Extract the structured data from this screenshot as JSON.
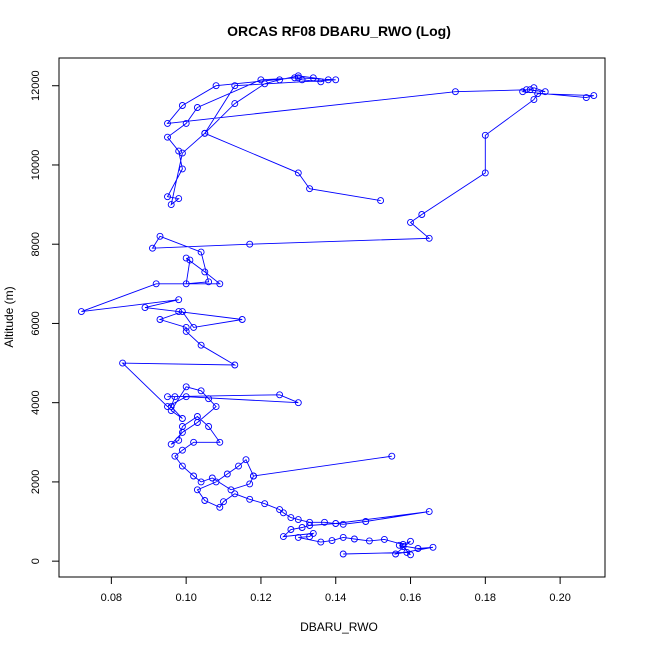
{
  "chart_data": {
    "type": "line",
    "title": "ORCAS RF08 DBARU_RWO (Log)",
    "xlabel": "DBARU_RWO",
    "ylabel": "Altitude (m)",
    "xlim": [
      0.066,
      0.212
    ],
    "ylim": [
      -400,
      12700
    ],
    "x_ticks": [
      0.08,
      0.1,
      0.12,
      0.14,
      0.16,
      0.18,
      0.2
    ],
    "x_tick_labels": [
      "0.08",
      "0.10",
      "0.12",
      "0.14",
      "0.16",
      "0.18",
      "0.20"
    ],
    "y_ticks": [
      0,
      2000,
      4000,
      6000,
      8000,
      10000,
      12000
    ],
    "y_tick_labels": [
      "0",
      "2000",
      "4000",
      "6000",
      "8000",
      "10000",
      "12000"
    ],
    "grid": false,
    "legend": "none",
    "marker": "open-circle",
    "color": "#0000ff",
    "series": [
      {
        "x": [
          0.142,
          0.159,
          0.16,
          0.158,
          0.157,
          0.162,
          0.166,
          0.156,
          0.16,
          0.158,
          0.153,
          0.149,
          0.145,
          0.142,
          0.139,
          0.136,
          0.13,
          0.133,
          0.134,
          0.126,
          0.128,
          0.131,
          0.133,
          0.14,
          0.165,
          0.148,
          0.142,
          0.137,
          0.133,
          0.13,
          0.128,
          0.126,
          0.125,
          0.121,
          0.117,
          0.113,
          0.11,
          0.109,
          0.105,
          0.103,
          0.108,
          0.111,
          0.114,
          0.116,
          0.118,
          0.155,
          0.118,
          0.117,
          0.112,
          0.107,
          0.104,
          0.102,
          0.099,
          0.097,
          0.099,
          0.102,
          0.109,
          0.106,
          0.103,
          0.099,
          0.098,
          0.096,
          0.099,
          0.103,
          0.108,
          0.106,
          0.104,
          0.1,
          0.096,
          0.099,
          0.096,
          0.097,
          0.095,
          0.125,
          0.13,
          0.1,
          0.095,
          0.083,
          0.113,
          0.104,
          0.1,
          0.1,
          0.093,
          0.099,
          0.102,
          0.115,
          0.098,
          0.089,
          0.098,
          0.072,
          0.092,
          0.109,
          0.105,
          0.1,
          0.101,
          0.1,
          0.106,
          0.104,
          0.093,
          0.091,
          0.117,
          0.165,
          0.16,
          0.163,
          0.18,
          0.18,
          0.193,
          0.194,
          0.209,
          0.207,
          0.19,
          0.191,
          0.196,
          0.193,
          0.192,
          0.172,
          0.095,
          0.099,
          0.108,
          0.129,
          0.131,
          0.136,
          0.138,
          0.134,
          0.13,
          0.125,
          0.121,
          0.113,
          0.105,
          0.113,
          0.14,
          0.13,
          0.12,
          0.103,
          0.1,
          0.095,
          0.098,
          0.099,
          0.095,
          0.098,
          0.096,
          0.099,
          0.105,
          0.13,
          0.133,
          0.152
        ],
        "y": [
          180,
          220,
          160,
          370,
          400,
          320,
          350,
          180,
          500,
          420,
          550,
          510,
          560,
          600,
          520,
          480,
          600,
          620,
          700,
          620,
          800,
          850,
          900,
          950,
          1250,
          1000,
          930,
          980,
          980,
          1050,
          1100,
          1220,
          1300,
          1450,
          1560,
          1700,
          1500,
          1360,
          1530,
          1800,
          2000,
          2200,
          2400,
          2560,
          2150,
          2650,
          2150,
          1950,
          1800,
          2100,
          2000,
          2150,
          2400,
          2650,
          2800,
          3000,
          3000,
          3400,
          3650,
          3400,
          3050,
          2950,
          3250,
          3500,
          3900,
          4100,
          4300,
          4400,
          3800,
          3600,
          3900,
          4150,
          4150,
          4200,
          4000,
          4150,
          3900,
          5000,
          4950,
          5450,
          5800,
          5900,
          6100,
          6300,
          5900,
          6100,
          6300,
          6400,
          6600,
          6300,
          7000,
          7000,
          7300,
          7650,
          7600,
          7000,
          7050,
          7800,
          8200,
          7900,
          8000,
          8150,
          8550,
          8750,
          9800,
          10750,
          11650,
          11800,
          11750,
          11700,
          11850,
          11900,
          11850,
          11950,
          11900,
          11850,
          11050,
          11500,
          12000,
          12200,
          12150,
          12100,
          12150,
          12200,
          12250,
          12150,
          12050,
          11550,
          10800,
          12000,
          12150,
          12200,
          12150,
          11450,
          11050,
          10700,
          10350,
          9900,
          9200,
          9150,
          9000,
          10300,
          10800,
          9800,
          9400,
          9100
        ]
      }
    ]
  }
}
